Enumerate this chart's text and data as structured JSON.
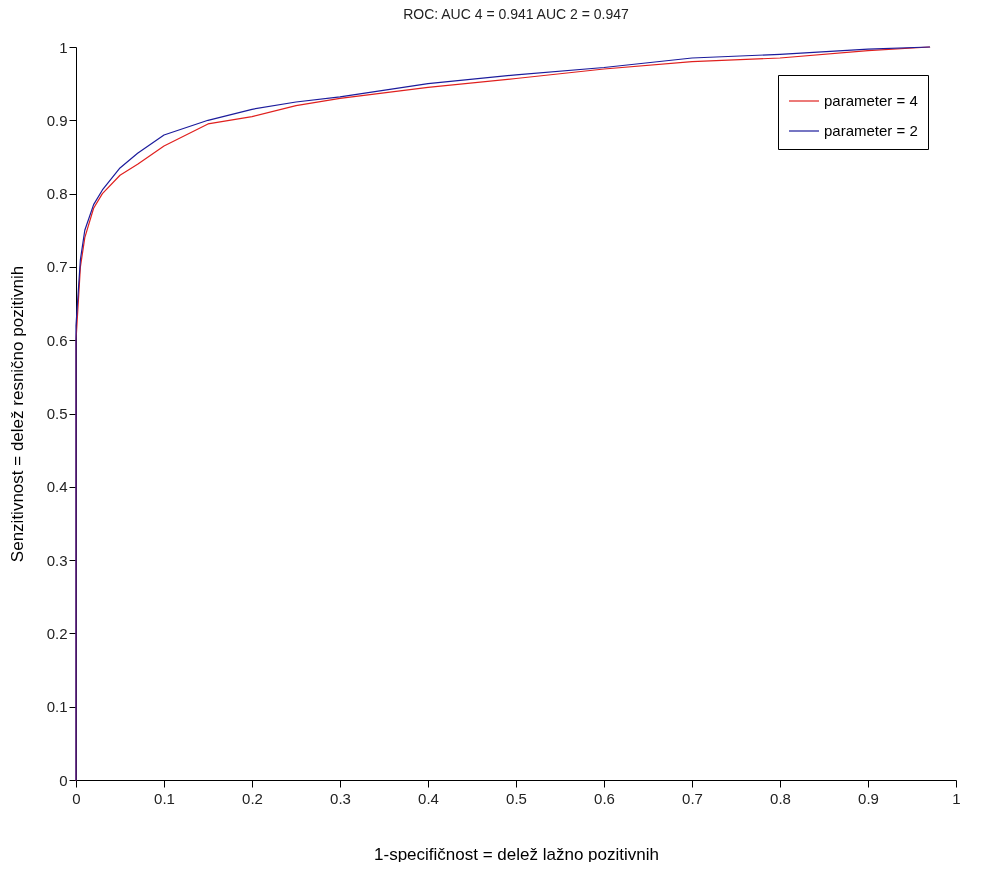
{
  "chart_data": {
    "type": "line",
    "title": "ROC: AUC 4 = 0.941 AUC 2 = 0.947",
    "xlabel": "1-specifičnost = delež lažno pozitivnih",
    "ylabel": "Senzitivnost = delež resnično pozitivnih",
    "xlim": [
      0,
      1
    ],
    "ylim": [
      0,
      1
    ],
    "xticks": [
      0,
      0.1,
      0.2,
      0.3,
      0.4,
      0.5,
      0.6,
      0.7,
      0.8,
      0.9,
      1
    ],
    "yticks": [
      0,
      0.1,
      0.2,
      0.3,
      0.4,
      0.5,
      0.6,
      0.7,
      0.8,
      0.9,
      1
    ],
    "grid": false,
    "legend": "top right",
    "marker": "none",
    "line_style": "solid",
    "series": [
      {
        "name": "parameter = 4",
        "color": "#e0201e",
        "x": [
          0,
          0,
          0.005,
          0.01,
          0.02,
          0.03,
          0.05,
          0.07,
          0.1,
          0.15,
          0.2,
          0.25,
          0.3,
          0.4,
          0.5,
          0.6,
          0.7,
          0.8,
          0.9,
          0.97
        ],
        "values": [
          0,
          0.6,
          0.7,
          0.74,
          0.78,
          0.8,
          0.825,
          0.84,
          0.865,
          0.895,
          0.905,
          0.92,
          0.93,
          0.945,
          0.957,
          0.97,
          0.98,
          0.985,
          0.995,
          1
        ]
      },
      {
        "name": "parameter = 2",
        "color": "#1c1c9c",
        "x": [
          0,
          0,
          0.005,
          0.01,
          0.02,
          0.03,
          0.05,
          0.07,
          0.1,
          0.15,
          0.2,
          0.25,
          0.3,
          0.4,
          0.5,
          0.6,
          0.7,
          0.8,
          0.9,
          0.97
        ],
        "values": [
          0,
          0.62,
          0.71,
          0.75,
          0.785,
          0.805,
          0.835,
          0.855,
          0.88,
          0.9,
          0.915,
          0.925,
          0.932,
          0.95,
          0.962,
          0.972,
          0.985,
          0.99,
          0.997,
          1
        ]
      }
    ]
  }
}
